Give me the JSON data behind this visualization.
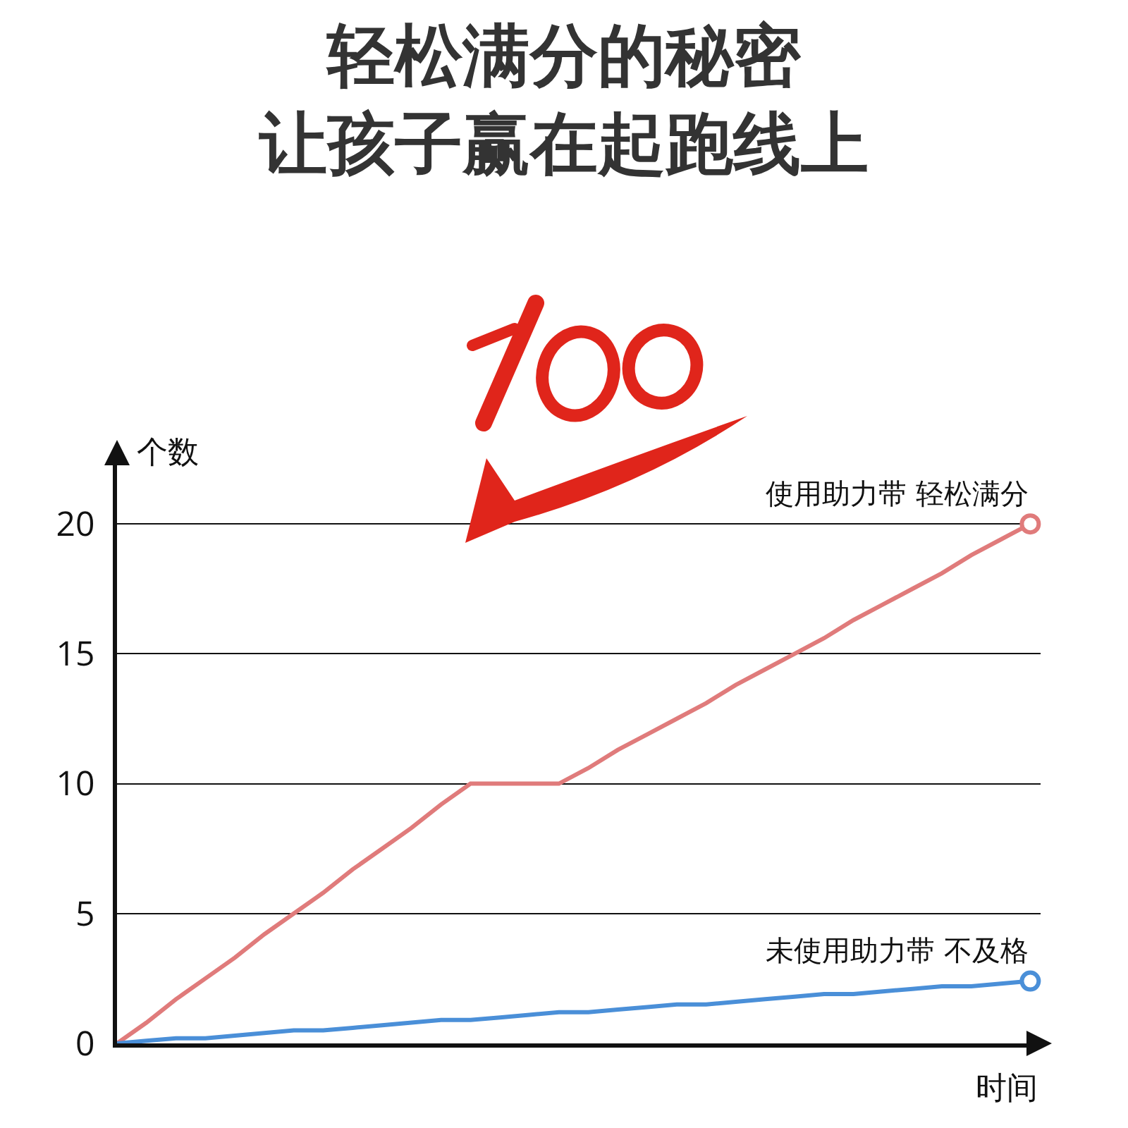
{
  "chart_data": {
    "type": "line",
    "title": "轻松满分的秘密",
    "subtitle": "让孩子赢在起跑线上",
    "xlabel": "时间",
    "ylabel": "个数",
    "categories": [
      null,
      null,
      null,
      null,
      null,
      null,
      null,
      null,
      null,
      null,
      null,
      null,
      null,
      null,
      null,
      null,
      null,
      null,
      null,
      null,
      null,
      null,
      null,
      null,
      null,
      null,
      null,
      null,
      null,
      null,
      null,
      null
    ],
    "series": [
      {
        "name": "使用助力带 轻松满分",
        "color": "#e07b7b",
        "values": [
          0,
          0.8,
          1.7,
          2.5,
          3.3,
          4.2,
          5,
          5.8,
          6.7,
          7.5,
          8.3,
          9.2,
          10,
          10,
          10,
          10,
          10.6,
          11.3,
          11.9,
          12.5,
          13.1,
          13.8,
          14.4,
          15,
          15.6,
          16.3,
          16.9,
          17.5,
          18.1,
          18.8,
          19.4,
          20
        ]
      },
      {
        "name": "未使用助力带 不及格",
        "color": "#4a8fd8",
        "values": [
          0,
          0.1,
          0.2,
          0.2,
          0.3,
          0.4,
          0.5,
          0.5,
          0.6,
          0.7,
          0.8,
          0.9,
          0.9,
          1,
          1.1,
          1.2,
          1.2,
          1.3,
          1.4,
          1.5,
          1.5,
          1.6,
          1.7,
          1.8,
          1.9,
          1.9,
          2,
          2.1,
          2.2,
          2.2,
          2.3,
          2.4
        ]
      }
    ],
    "ylim": [
      0,
      22.8
    ],
    "yticks": [
      0,
      5,
      10,
      15,
      20
    ],
    "grid": "y",
    "tick_labels": "y",
    "line_style": "solid",
    "legend": false
  }
}
